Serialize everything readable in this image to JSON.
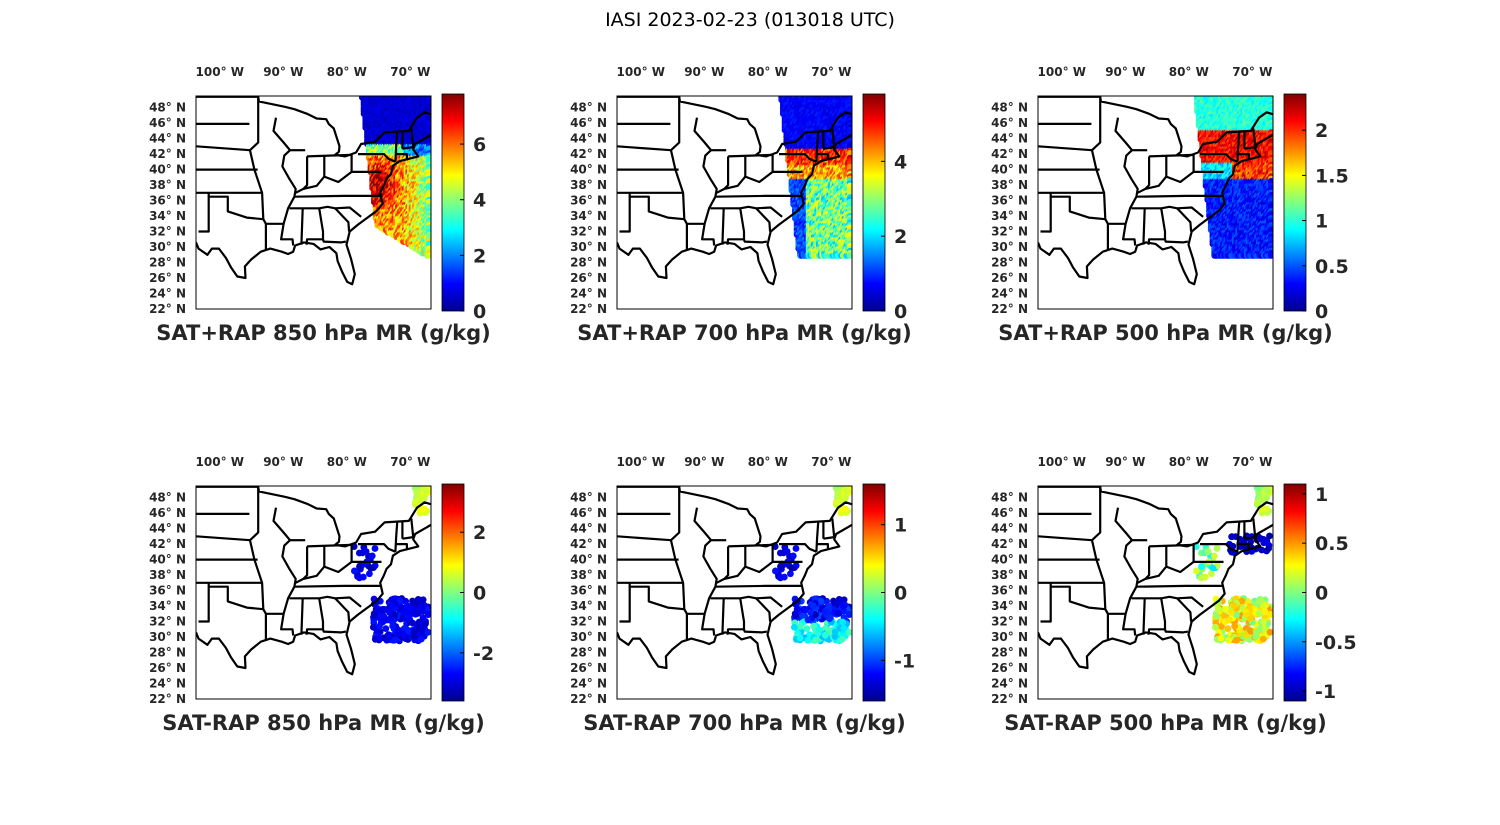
{
  "figure_title": "IASI 2023-02-23 (013018 UTC)",
  "lon_labels": [
    "100",
    "90",
    "80",
    "70"
  ],
  "lon_suffix": "W",
  "lat_labels": [
    "48",
    "46",
    "44",
    "42",
    "40",
    "38",
    "36",
    "34",
    "32",
    "30",
    "28",
    "26",
    "24",
    "22"
  ],
  "lat_suffix": "N",
  "degree_mark": "°",
  "colormap": "jet",
  "panels": [
    {
      "title": "SAT+RAP 850 hPa MR (g/kg)",
      "clim": [
        0,
        7.8
      ],
      "colorbar_ticks": [
        "0",
        "2",
        "4",
        "6"
      ],
      "field": "full",
      "pattern": "moist850"
    },
    {
      "title": "SAT+RAP 700 hPa MR (g/kg)",
      "clim": [
        0,
        5.8
      ],
      "colorbar_ticks": [
        "0",
        "2",
        "4"
      ],
      "field": "full",
      "pattern": "moist700"
    },
    {
      "title": "SAT+RAP 500 hPa MR (g/kg)",
      "clim": [
        0,
        2.4
      ],
      "colorbar_ticks": [
        "0",
        "0.5",
        "1",
        "1.5",
        "2"
      ],
      "field": "full",
      "pattern": "moist500"
    },
    {
      "title": "SAT-RAP 850 hPa MR (g/kg)",
      "clim": [
        -3.6,
        3.6
      ],
      "colorbar_ticks": [
        "-2",
        "0",
        "2"
      ],
      "field": "diff",
      "pattern": "diff850"
    },
    {
      "title": "SAT-RAP 700 hPa MR (g/kg)",
      "clim": [
        -1.6,
        1.6
      ],
      "colorbar_ticks": [
        "-1",
        "0",
        "1"
      ],
      "field": "diff",
      "pattern": "diff700"
    },
    {
      "title": "SAT-RAP 500 hPa MR (g/kg)",
      "clim": [
        -1.1,
        1.1
      ],
      "colorbar_ticks": [
        "-1",
        "-0.5",
        "0",
        "0.5",
        "1"
      ],
      "field": "diff",
      "pattern": "diff500"
    }
  ]
}
